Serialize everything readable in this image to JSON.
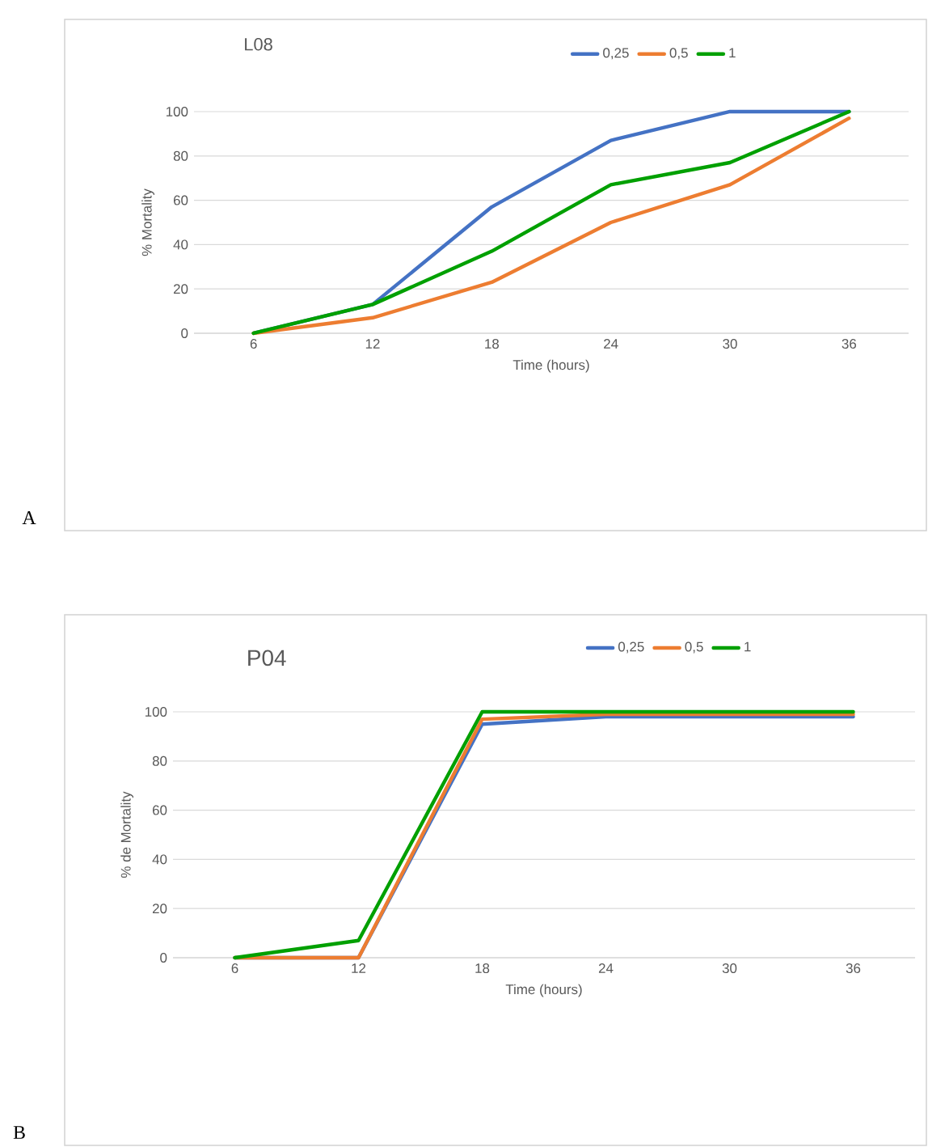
{
  "chart_data": [
    {
      "type": "line",
      "title": "L08",
      "xlabel": "Time (hours)",
      "ylabel": "% Mortality",
      "categories": [
        "6",
        "12",
        "18",
        "24",
        "30",
        "36"
      ],
      "ylim": [
        0,
        100
      ],
      "yticks": [
        0,
        20,
        40,
        60,
        80,
        100
      ],
      "grid": "y",
      "legend": "top",
      "marker": "none",
      "line_style": "solid",
      "annotations": [
        "A"
      ],
      "series": [
        {
          "name": "0,25",
          "color": "#4472c4",
          "values": [
            0,
            13,
            57,
            87,
            100,
            100
          ]
        },
        {
          "name": "0,5",
          "color": "#ed7d31",
          "values": [
            0,
            7,
            23,
            50,
            67,
            97
          ]
        },
        {
          "name": "1",
          "color": "#00a000",
          "values": [
            0,
            13,
            37,
            67,
            77,
            100
          ]
        }
      ]
    },
    {
      "type": "line",
      "title": "P04",
      "xlabel": "Time (hours)",
      "ylabel": "% de Mortality",
      "categories": [
        "6",
        "12",
        "18",
        "24",
        "30",
        "36"
      ],
      "ylim": [
        0,
        100
      ],
      "yticks": [
        0,
        20,
        40,
        60,
        80,
        100
      ],
      "grid": "y",
      "legend": "top",
      "marker": "none",
      "line_style": "solid",
      "annotations": [
        "B"
      ],
      "series": [
        {
          "name": "0,25",
          "color": "#4472c4",
          "values": [
            0,
            0,
            95,
            98,
            98,
            98
          ]
        },
        {
          "name": "0,5",
          "color": "#ed7d31",
          "values": [
            0,
            0,
            97,
            99,
            99,
            99
          ]
        },
        {
          "name": "1",
          "color": "#00a000",
          "values": [
            0,
            7,
            100,
            100,
            100,
            100
          ]
        }
      ]
    }
  ]
}
